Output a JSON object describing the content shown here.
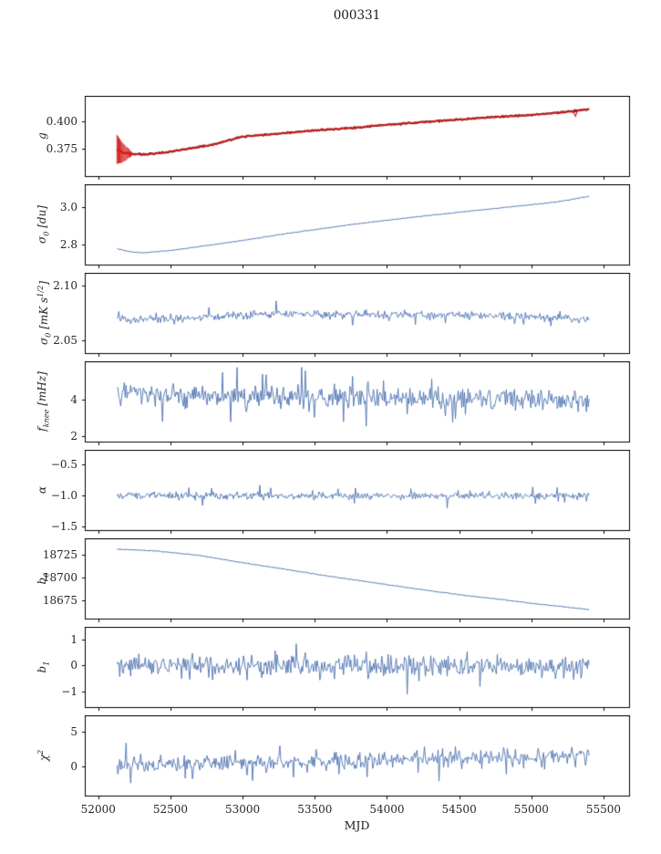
{
  "title": "000331",
  "chart_data": {
    "type": "line",
    "title": "000331",
    "xlabel": "MJD",
    "xlim": [
      51910,
      55680
    ],
    "x_start": 52130,
    "x_end": 55400,
    "grid": false,
    "legend": "none",
    "xticks": [
      {
        "v": 52000,
        "label": "52000"
      },
      {
        "v": 52500,
        "label": "52500"
      },
      {
        "v": 53000,
        "label": "53000"
      },
      {
        "v": 53500,
        "label": "53500"
      },
      {
        "v": 54000,
        "label": "54000"
      },
      {
        "v": 54500,
        "label": "54500"
      },
      {
        "v": 55000,
        "label": "55000"
      },
      {
        "v": 55500,
        "label": "55500"
      }
    ],
    "colors": {
      "line_blue": "#4c72b0",
      "fit_red": "#d62020",
      "fit_dark": "#8b1616",
      "axis": "#000000",
      "text": "#262626",
      "background": "#ffffff"
    },
    "panels": [
      {
        "id": "g",
        "ylabel": "g",
        "ylim": [
          0.349,
          0.4235
        ],
        "yticks": [
          {
            "v": 0.4,
            "label": "0.400"
          },
          {
            "v": 0.375,
            "label": "0.375"
          }
        ],
        "series": [
          {
            "color": "#8b1616",
            "width": 2.2,
            "points": 480,
            "noise": 0.0005,
            "trend": [
              [
                52130,
                0.374
              ],
              [
                52170,
                0.3712
              ],
              [
                52250,
                0.3697
              ],
              [
                52330,
                0.3695
              ],
              [
                52450,
                0.3712
              ],
              [
                52600,
                0.3742
              ],
              [
                52800,
                0.3788
              ],
              [
                53000,
                0.386
              ],
              [
                53250,
                0.3888
              ],
              [
                53500,
                0.3918
              ],
              [
                53750,
                0.394
              ],
              [
                54000,
                0.397
              ],
              [
                54250,
                0.3996
              ],
              [
                54500,
                0.402
              ],
              [
                54750,
                0.4042
              ],
              [
                55000,
                0.4062
              ],
              [
                55150,
                0.4078
              ],
              [
                55300,
                0.4098
              ],
              [
                55400,
                0.4115
              ]
            ]
          },
          {
            "color": "#d62020",
            "width": 1.2,
            "points": 480,
            "noise": 0.0005,
            "trend": [
              [
                52130,
                0.374
              ],
              [
                52170,
                0.3712
              ],
              [
                52250,
                0.3697
              ],
              [
                52330,
                0.3695
              ],
              [
                52450,
                0.3712
              ],
              [
                52600,
                0.3742
              ],
              [
                52800,
                0.3788
              ],
              [
                53000,
                0.386
              ],
              [
                53250,
                0.3888
              ],
              [
                53500,
                0.3918
              ],
              [
                53750,
                0.394
              ],
              [
                54000,
                0.397
              ],
              [
                54250,
                0.3996
              ],
              [
                54500,
                0.402
              ],
              [
                54750,
                0.4042
              ],
              [
                55000,
                0.4062
              ],
              [
                55150,
                0.4078
              ],
              [
                55290,
                0.4096
              ],
              [
                55305,
                0.405
              ],
              [
                55320,
                0.41
              ],
              [
                55400,
                0.4115
              ]
            ],
            "errorbars": {
              "from": 52130,
              "to": 52235,
              "max": 0.0135,
              "min": 0.0015
            }
          }
        ]
      },
      {
        "id": "sigma0-du",
        "ylabel": "σ_0 [du]",
        "ylim": [
          2.69,
          3.12
        ],
        "yticks": [
          {
            "v": 3.0,
            "label": "3.0"
          },
          {
            "v": 2.8,
            "label": "2.8"
          }
        ],
        "series": [
          {
            "color": "#4c72b0",
            "width": 1.0,
            "points": 420,
            "noise": 0.0015,
            "trend": [
              [
                52130,
                2.778
              ],
              [
                52220,
                2.761
              ],
              [
                52320,
                2.756
              ],
              [
                52500,
                2.768
              ],
              [
                52750,
                2.794
              ],
              [
                53000,
                2.822
              ],
              [
                53250,
                2.852
              ],
              [
                53500,
                2.88
              ],
              [
                53750,
                2.906
              ],
              [
                54000,
                2.93
              ],
              [
                54250,
                2.952
              ],
              [
                54500,
                2.973
              ],
              [
                54750,
                2.993
              ],
              [
                55000,
                3.013
              ],
              [
                55200,
                3.031
              ],
              [
                55400,
                3.058
              ]
            ]
          }
        ]
      },
      {
        "id": "sigma0-mks",
        "ylabel": "σ_0 [mK s^1/2]",
        "ylim": [
          2.038,
          2.111
        ],
        "yticks": [
          {
            "v": 2.1,
            "label": "2.10"
          },
          {
            "v": 2.05,
            "label": "2.05"
          }
        ],
        "series": [
          {
            "color": "#4c72b0",
            "width": 0.9,
            "points": 520,
            "noise": 0.0032,
            "spike_p": 0.025,
            "spike_amp": 0.006,
            "trend": [
              [
                52130,
                2.0695
              ],
              [
                52600,
                2.0705
              ],
              [
                53200,
                2.0738
              ],
              [
                54200,
                2.0732
              ],
              [
                55000,
                2.0718
              ],
              [
                55400,
                2.0695
              ]
            ]
          }
        ]
      },
      {
        "id": "fknee",
        "ylabel": "f_knee [mHz]",
        "ylim": [
          1.7,
          6.05
        ],
        "yticks": [
          {
            "v": 4,
            "label": "4"
          },
          {
            "v": 2,
            "label": "2"
          }
        ],
        "series": [
          {
            "color": "#4c72b0",
            "width": 0.9,
            "points": 520,
            "noise": 0.5,
            "spike_p": 0.05,
            "spike_amp": 0.9,
            "trend": [
              [
                52130,
                4.4
              ],
              [
                52300,
                4.25
              ],
              [
                53000,
                4.15
              ],
              [
                54000,
                4.1
              ],
              [
                55000,
                4.0
              ],
              [
                55400,
                3.9
              ]
            ]
          }
        ]
      },
      {
        "id": "alpha",
        "ylabel": "α",
        "ylim": [
          -1.57,
          -0.27
        ],
        "yticks": [
          {
            "v": -0.5,
            "label": "−0.5"
          },
          {
            "v": -1.0,
            "label": "−1.0"
          },
          {
            "v": -1.5,
            "label": "−1.5"
          }
        ],
        "series": [
          {
            "color": "#4c72b0",
            "width": 0.9,
            "points": 520,
            "noise": 0.05,
            "spike_p": 0.03,
            "spike_amp": 0.1,
            "trend": [
              [
                52130,
                -1.005
              ],
              [
                55400,
                -1.01
              ]
            ]
          }
        ]
      },
      {
        "id": "b0",
        "ylabel": "b_0",
        "ylim": [
          18654,
          18743
        ],
        "yticks": [
          {
            "v": 18725,
            "label": "18725"
          },
          {
            "v": 18700,
            "label": "18700"
          },
          {
            "v": 18675,
            "label": "18675"
          }
        ],
        "series": [
          {
            "color": "#4c72b0",
            "width": 1.0,
            "points": 420,
            "noise": 0.3,
            "trend": [
              [
                52130,
                18731.5
              ],
              [
                52400,
                18729.5
              ],
              [
                52700,
                18724.5
              ],
              [
                53000,
                18716.5
              ],
              [
                53300,
                18709
              ],
              [
                53600,
                18701.5
              ],
              [
                53900,
                18694.5
              ],
              [
                54200,
                18687.5
              ],
              [
                54500,
                18681
              ],
              [
                54800,
                18675.5
              ],
              [
                55000,
                18671.5
              ],
              [
                55200,
                18668
              ],
              [
                55400,
                18664.5
              ]
            ]
          }
        ]
      },
      {
        "id": "b1",
        "ylabel": "b_1",
        "ylim": [
          -1.62,
          1.47
        ],
        "yticks": [
          {
            "v": 1,
            "label": "1"
          },
          {
            "v": 0,
            "label": "0"
          },
          {
            "v": -1,
            "label": "−1"
          }
        ],
        "series": [
          {
            "color": "#4c72b0",
            "width": 0.9,
            "points": 520,
            "noise": 0.35,
            "spike_p": 0.06,
            "spike_amp": 0.55,
            "trend": [
              [
                52130,
                -0.02
              ],
              [
                55400,
                -0.05
              ]
            ]
          }
        ]
      },
      {
        "id": "chi2",
        "ylabel": "χ^2",
        "ylim": [
          -4.2,
          7.3
        ],
        "yticks": [
          {
            "v": 5,
            "label": "5"
          },
          {
            "v": 0,
            "label": "0"
          }
        ],
        "series": [
          {
            "color": "#4c72b0",
            "width": 0.9,
            "points": 520,
            "noise": 1.0,
            "spike_p": 0.05,
            "spike_amp": 1.6,
            "trend": [
              [
                52130,
                0.4
              ],
              [
                53000,
                0.6
              ],
              [
                54000,
                0.9
              ],
              [
                54800,
                1.3
              ],
              [
                55400,
                1.7
              ]
            ]
          }
        ]
      }
    ]
  }
}
